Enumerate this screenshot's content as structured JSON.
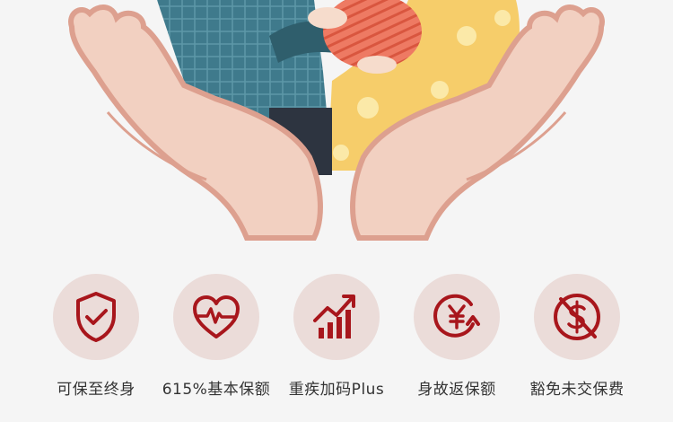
{
  "colors": {
    "accent": "#a8161c",
    "circle_bg": "#ebdcd9",
    "text": "#333333",
    "background": "#f5f5f5"
  },
  "features": [
    {
      "label": "可保至终身",
      "icon": "shield-check-icon"
    },
    {
      "label": "615%基本保额",
      "icon": "heart-pulse-icon"
    },
    {
      "label": "重疾加码Plus",
      "icon": "bar-chart-up-icon"
    },
    {
      "label": "身故返保额",
      "icon": "yen-return-icon"
    },
    {
      "label": "豁免未交保费",
      "icon": "no-dollar-icon"
    }
  ]
}
